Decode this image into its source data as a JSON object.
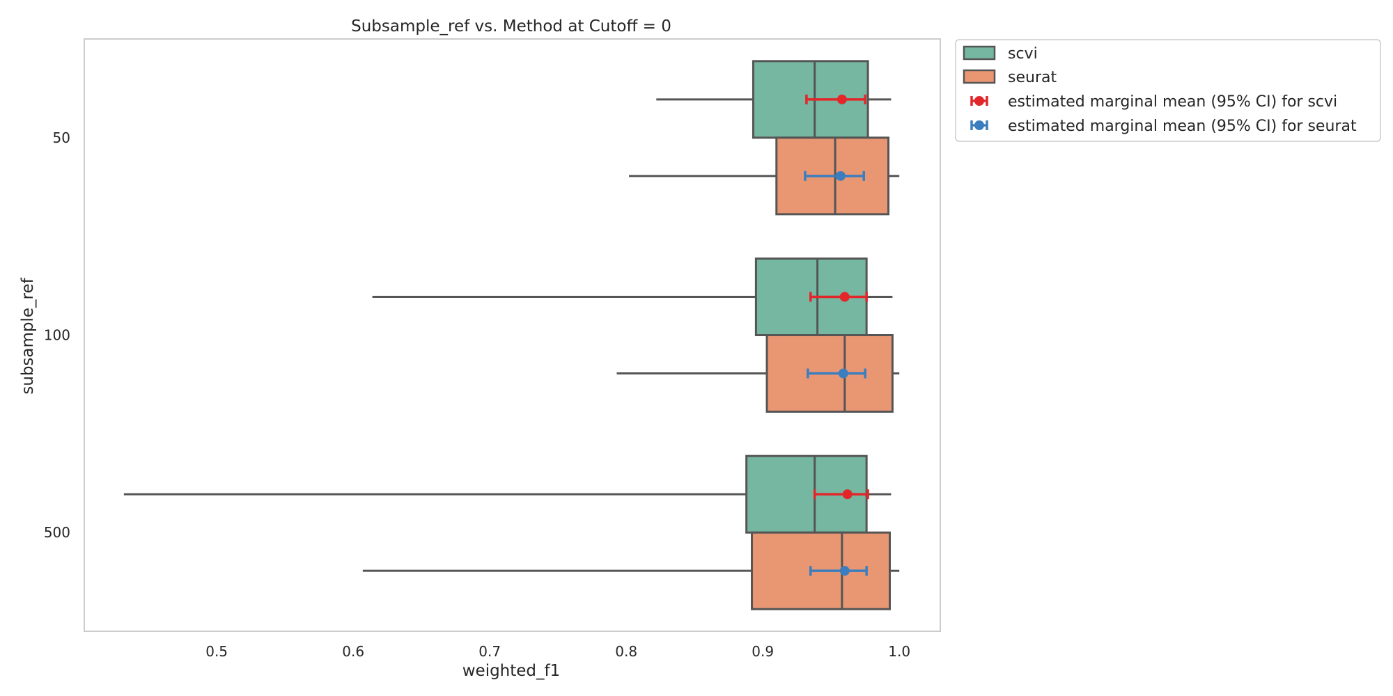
{
  "chart_data": {
    "type": "boxplot",
    "orientation": "horizontal",
    "title": "Subsample_ref vs. Method at Cutoff = 0",
    "xlabel": "weighted_f1",
    "ylabel": "subsample_ref",
    "xlim": [
      0.403,
      1.03
    ],
    "xticks": [
      0.5,
      0.6,
      0.7,
      0.8,
      0.9,
      1.0
    ],
    "xtick_labels": [
      "0.5",
      "0.6",
      "0.7",
      "0.8",
      "0.9",
      "1.0"
    ],
    "categories": [
      "50",
      "100",
      "500"
    ],
    "grid": false,
    "legend_position": "outside-right",
    "series": [
      {
        "name": "scvi",
        "color": "#75b7a1",
        "boxes": [
          {
            "whisker_low": 0.822,
            "q1": 0.893,
            "median": 0.938,
            "q3": 0.977,
            "whisker_high": 0.994
          },
          {
            "whisker_low": 0.614,
            "q1": 0.895,
            "median": 0.94,
            "q3": 0.976,
            "whisker_high": 0.995
          },
          {
            "whisker_low": 0.432,
            "q1": 0.888,
            "median": 0.938,
            "q3": 0.976,
            "whisker_high": 0.994
          }
        ]
      },
      {
        "name": "seurat",
        "color": "#e99773",
        "boxes": [
          {
            "whisker_low": 0.802,
            "q1": 0.91,
            "median": 0.953,
            "q3": 0.992,
            "whisker_high": 1.0
          },
          {
            "whisker_low": 0.793,
            "q1": 0.903,
            "median": 0.96,
            "q3": 0.995,
            "whisker_high": 1.0
          },
          {
            "whisker_low": 0.607,
            "q1": 0.892,
            "median": 0.958,
            "q3": 0.993,
            "whisker_high": 1.0
          }
        ]
      }
    ],
    "marginal_means": [
      {
        "name": "estimated marginal mean (95% CI) for scvi",
        "color": "#e3262a",
        "points": [
          {
            "mean": 0.958,
            "ci_low": 0.932,
            "ci_high": 0.975
          },
          {
            "mean": 0.96,
            "ci_low": 0.935,
            "ci_high": 0.976
          },
          {
            "mean": 0.962,
            "ci_low": 0.938,
            "ci_high": 0.977
          }
        ]
      },
      {
        "name": "estimated marginal mean (95% CI) for seurat",
        "color": "#3a7ebf",
        "points": [
          {
            "mean": 0.957,
            "ci_low": 0.931,
            "ci_high": 0.974
          },
          {
            "mean": 0.959,
            "ci_low": 0.933,
            "ci_high": 0.975
          },
          {
            "mean": 0.96,
            "ci_low": 0.935,
            "ci_high": 0.976
          }
        ]
      }
    ],
    "box_edge_color": "#555555",
    "frame_color": "#cccccc"
  }
}
